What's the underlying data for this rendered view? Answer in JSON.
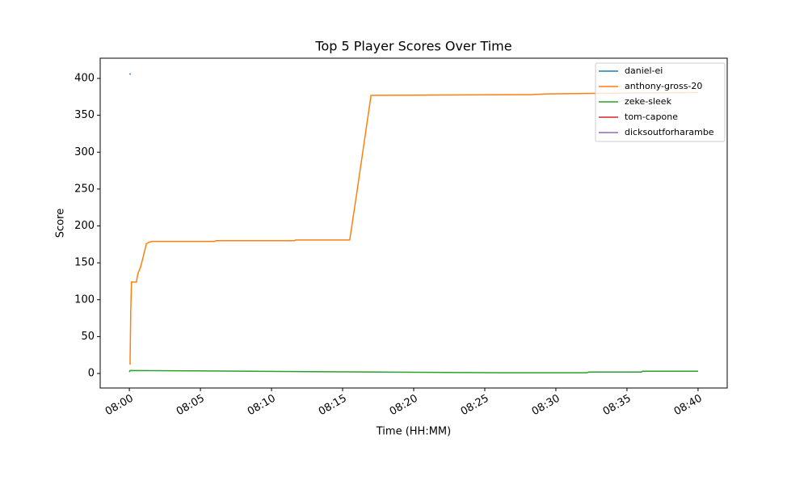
{
  "chart_data": {
    "type": "line",
    "title": "Top 5 Player Scores Over Time",
    "x_label": "Time (HH:MM)",
    "y_label": "Score",
    "xlim": [
      477.95,
      522.05
    ],
    "ylim": [
      -19.7,
      427.4
    ],
    "xticks": [
      {
        "value": 480,
        "label": "08:00"
      },
      {
        "value": 485,
        "label": "08:05"
      },
      {
        "value": 490,
        "label": "08:10"
      },
      {
        "value": 495,
        "label": "08:15"
      },
      {
        "value": 500,
        "label": "08:20"
      },
      {
        "value": 505,
        "label": "08:25"
      },
      {
        "value": 510,
        "label": "08:30"
      },
      {
        "value": 515,
        "label": "08:35"
      },
      {
        "value": 520,
        "label": "08:40"
      }
    ],
    "yticks": [
      0,
      50,
      100,
      150,
      200,
      250,
      300,
      350,
      400
    ],
    "legend": "upper right",
    "series": [
      {
        "name": "daniel-ei",
        "color": "#1f77b4",
        "x": [
          480.0,
          480.1
        ],
        "values": [
          406,
          406
        ]
      },
      {
        "name": "anthony-gross-20",
        "color": "#ff7f0e",
        "x": [
          480.05,
          480.1,
          480.15,
          480.5,
          480.6,
          480.8,
          481.0,
          481.2,
          481.4,
          481.6,
          486.0,
          486.1,
          491.6,
          491.7,
          495.5,
          496.0,
          497.0,
          508.2,
          509.5,
          514.0,
          520.0
        ],
        "values": [
          12,
          85,
          124,
          124,
          135,
          145,
          160,
          176,
          178,
          179,
          179,
          180,
          180,
          181,
          181,
          245,
          377,
          378,
          379,
          380,
          381
        ]
      },
      {
        "name": "zeke-sleek",
        "color": "#2ca02c",
        "x": [
          480.0,
          480.05,
          506.0,
          512.2,
          512.3,
          516.0,
          516.1,
          520.0
        ],
        "values": [
          2,
          4,
          1,
          1,
          2,
          2,
          3,
          3
        ]
      },
      {
        "name": "tom-capone",
        "color": "#d62728",
        "x": [],
        "values": []
      },
      {
        "name": "dicksoutforharambe",
        "color": "#9467bd",
        "x": [],
        "values": []
      }
    ]
  }
}
